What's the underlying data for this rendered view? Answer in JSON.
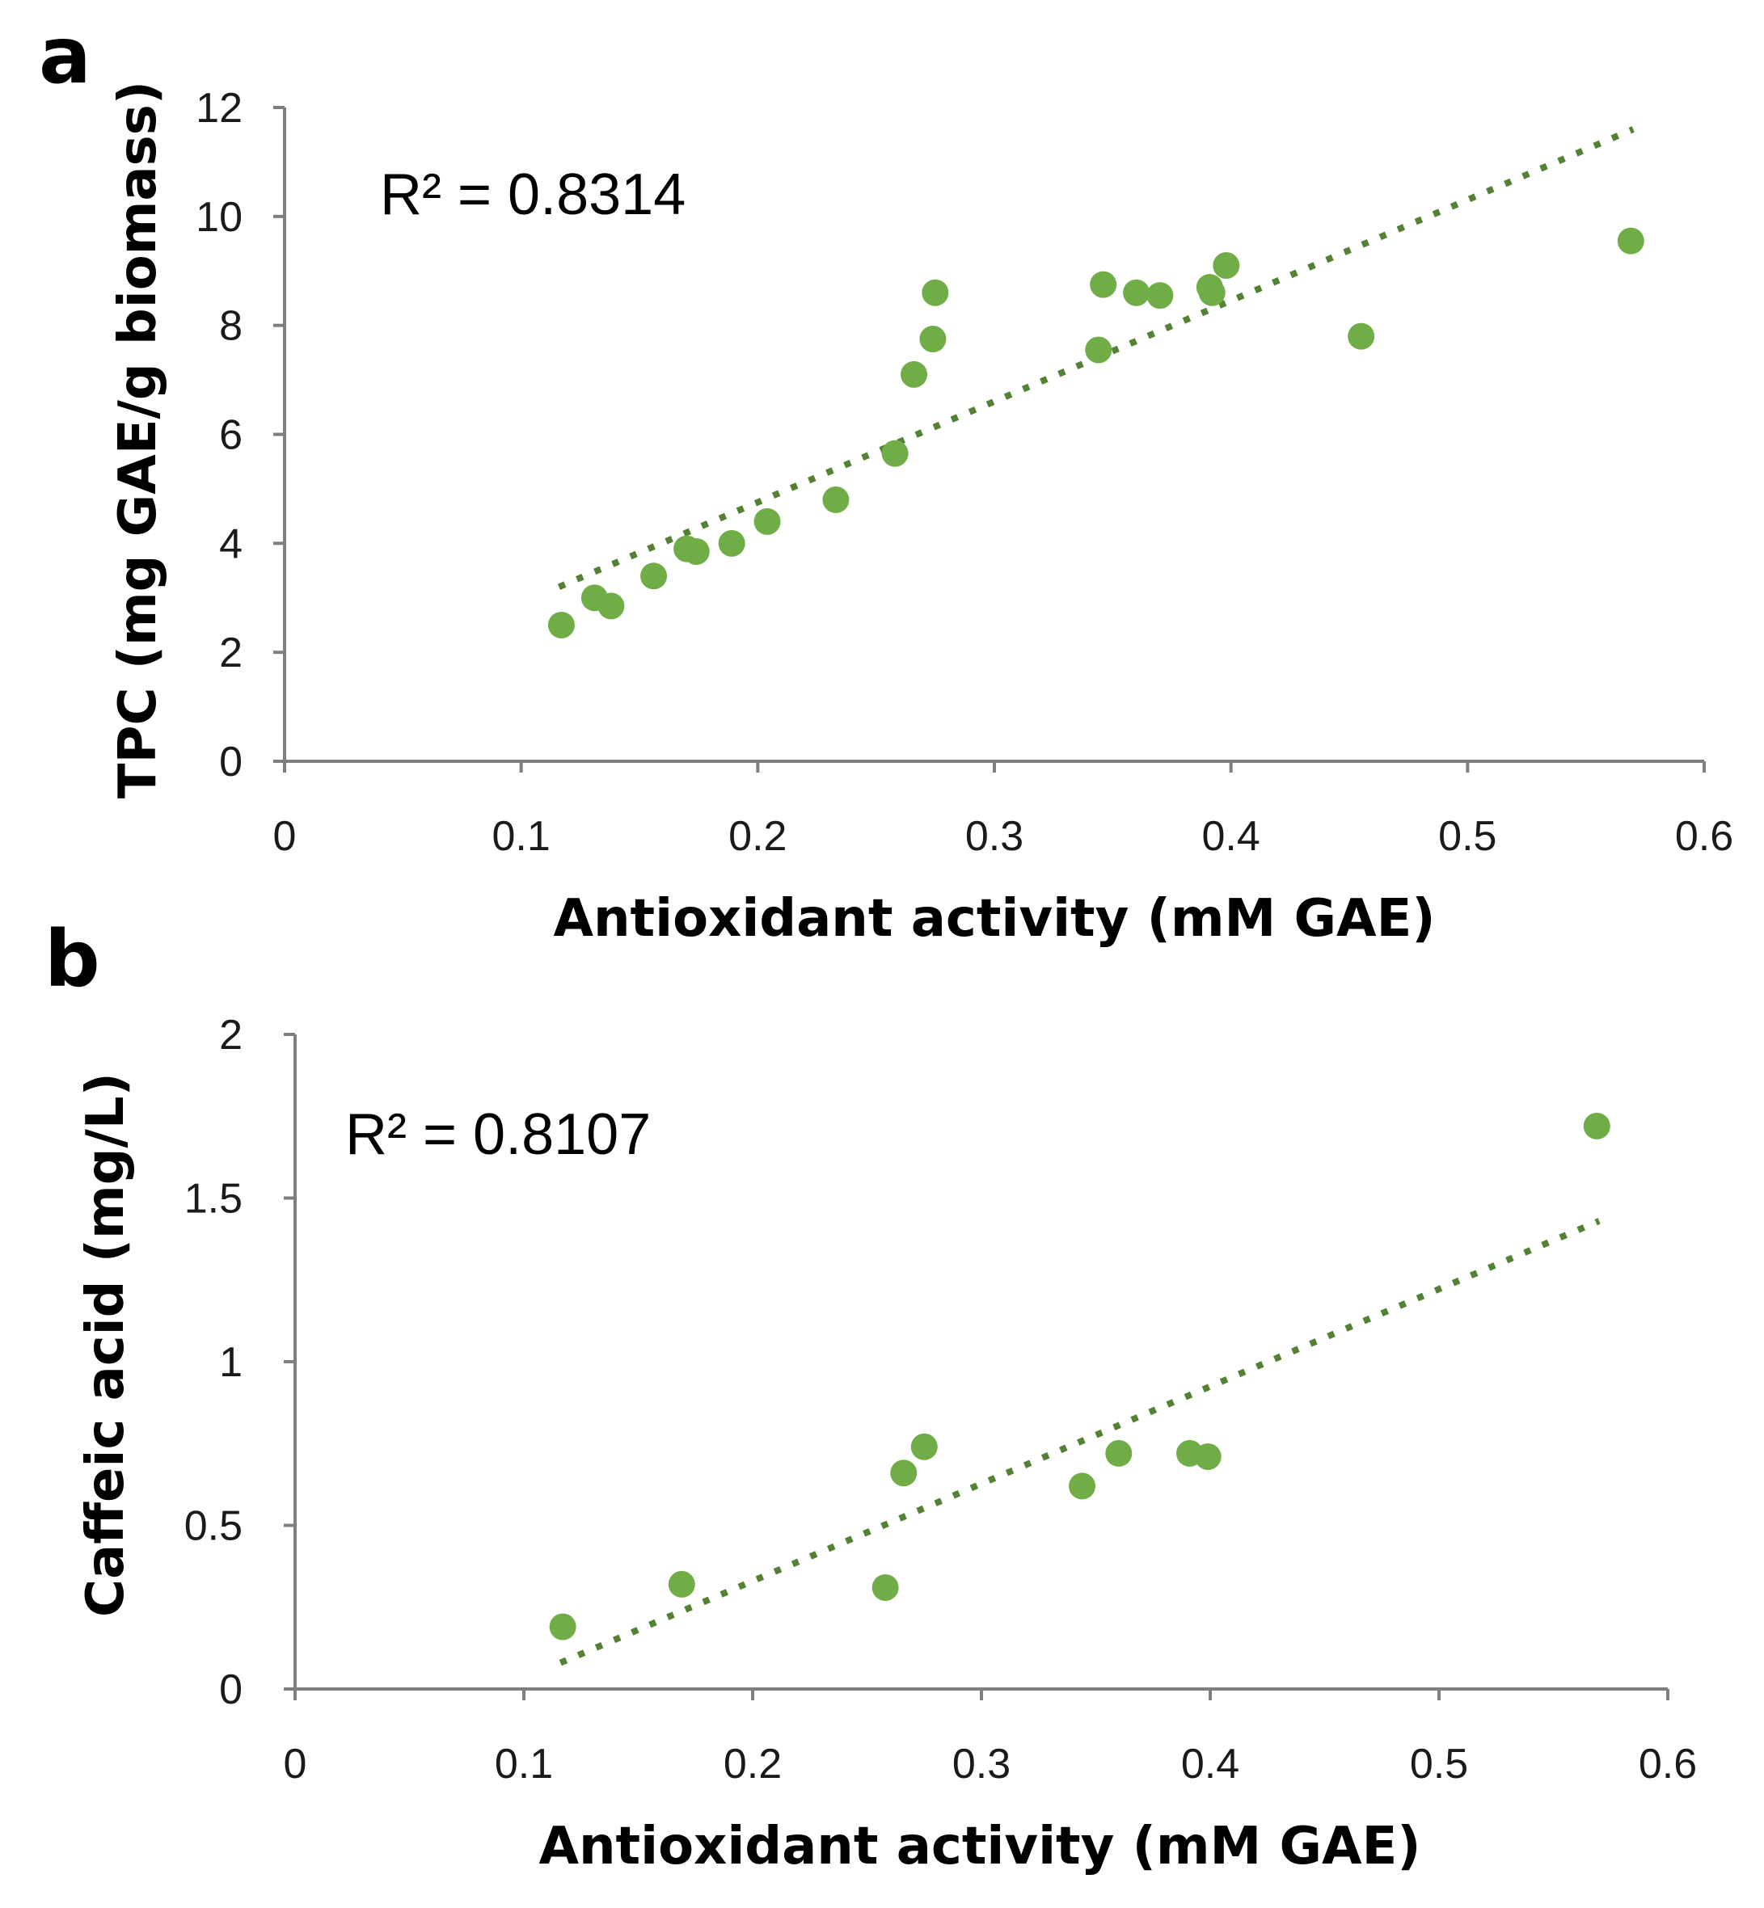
{
  "chart_data": [
    {
      "panel": "a",
      "type": "scatter",
      "title": "",
      "xlabel": "Antioxidant activity (mM GAE)",
      "ylabel": "TPC (mg GAE/g biomass)",
      "xlim": [
        0,
        0.6
      ],
      "ylim": [
        0,
        12
      ],
      "xticks": [
        0,
        0.1,
        0.2,
        0.3,
        0.4,
        0.5,
        0.6
      ],
      "yticks": [
        0,
        2,
        4,
        6,
        8,
        10,
        12
      ],
      "xtick_labels": [
        "0",
        "0.1",
        "0.2",
        "0.3",
        "0.4",
        "0.5",
        "0.6"
      ],
      "ytick_labels": [
        "0",
        "2",
        "4",
        "6",
        "8",
        "10",
        "12"
      ],
      "annotation": "R² = 0.8314",
      "grid": false,
      "trendline": {
        "style": "dotted",
        "start": [
          0.116,
          3.2
        ],
        "end": [
          0.57,
          11.6
        ]
      },
      "points": [
        {
          "x": 0.117,
          "y": 2.5
        },
        {
          "x": 0.131,
          "y": 3.0
        },
        {
          "x": 0.138,
          "y": 2.85
        },
        {
          "x": 0.156,
          "y": 3.4
        },
        {
          "x": 0.17,
          "y": 3.9
        },
        {
          "x": 0.174,
          "y": 3.85
        },
        {
          "x": 0.189,
          "y": 4.0
        },
        {
          "x": 0.204,
          "y": 4.4
        },
        {
          "x": 0.233,
          "y": 4.8
        },
        {
          "x": 0.258,
          "y": 5.65
        },
        {
          "x": 0.266,
          "y": 7.1
        },
        {
          "x": 0.274,
          "y": 7.75
        },
        {
          "x": 0.275,
          "y": 8.6
        },
        {
          "x": 0.344,
          "y": 7.55
        },
        {
          "x": 0.346,
          "y": 8.75
        },
        {
          "x": 0.36,
          "y": 8.6
        },
        {
          "x": 0.37,
          "y": 8.55
        },
        {
          "x": 0.391,
          "y": 8.7
        },
        {
          "x": 0.392,
          "y": 8.6
        },
        {
          "x": 0.398,
          "y": 9.1
        },
        {
          "x": 0.455,
          "y": 7.8
        },
        {
          "x": 0.569,
          "y": 9.55
        }
      ]
    },
    {
      "panel": "b",
      "type": "scatter",
      "title": "",
      "xlabel": "Antioxidant activity (mM GAE)",
      "ylabel": "Caffeic acid (mg/L)",
      "xlim": [
        0,
        0.6
      ],
      "ylim": [
        0,
        2
      ],
      "xticks": [
        0,
        0.1,
        0.2,
        0.3,
        0.4,
        0.5,
        0.6
      ],
      "yticks": [
        0,
        0.5,
        1,
        1.5,
        2
      ],
      "xtick_labels": [
        "0",
        "0.1",
        "0.2",
        "0.3",
        "0.4",
        "0.5",
        "0.6"
      ],
      "ytick_labels": [
        "0",
        "0.5",
        "1",
        "1.5",
        "2"
      ],
      "annotation": "R² = 0.8107",
      "grid": false,
      "trendline": {
        "style": "dotted",
        "start": [
          0.116,
          0.08
        ],
        "end": [
          0.57,
          1.43
        ]
      },
      "points": [
        {
          "x": 0.117,
          "y": 0.19
        },
        {
          "x": 0.169,
          "y": 0.32
        },
        {
          "x": 0.258,
          "y": 0.31
        },
        {
          "x": 0.266,
          "y": 0.66
        },
        {
          "x": 0.275,
          "y": 0.74
        },
        {
          "x": 0.344,
          "y": 0.62
        },
        {
          "x": 0.36,
          "y": 0.72
        },
        {
          "x": 0.391,
          "y": 0.72
        },
        {
          "x": 0.399,
          "y": 0.71
        },
        {
          "x": 0.569,
          "y": 1.72
        }
      ]
    }
  ],
  "colors": {
    "marker": "#70ad47",
    "trendline": "#548235",
    "axis": "#7f7f7f",
    "text": "#000000"
  }
}
